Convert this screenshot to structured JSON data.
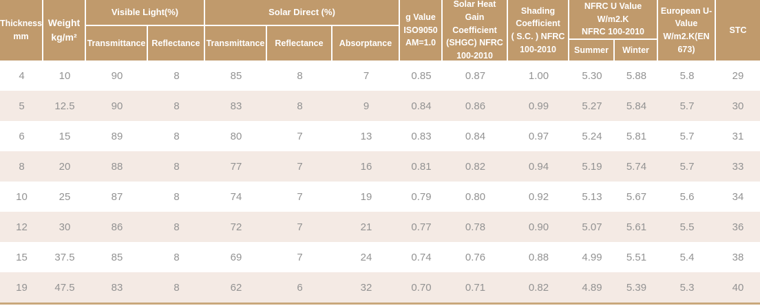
{
  "header": {
    "thickness": "Thickness\nmm",
    "weight": "Weight\nkg/m²",
    "visible_light": "Visible Light(%)",
    "visible_light_transmittance": "Transmittance",
    "visible_light_reflectance": "Reflectance",
    "solar_direct": "Solar  Direct (%)",
    "solar_direct_transmittance": "Transmittance",
    "solar_direct_reflectance": "Reflectance",
    "solar_direct_absorptance": "Absorptance",
    "g_value": "g Value\nISO9050\nAM=1.0",
    "shgc": "Solar Heat Gain\nCoefficient\n(SHGC) NFRC\n100-2010",
    "shading_coefficient": "Shading\nCoefficient\n( S.C. ) NFRC\n100-2010",
    "nfrc_u_value": "NFRC U Value\nW/m2.K\nNFRC 100-2010",
    "summer": "Summer",
    "winter": "Winter",
    "european_u_value": "European U-\nValue\nW/m2.K(EN\n673)",
    "stc": "STC"
  },
  "chart_data": {
    "type": "table",
    "columns": [
      "Thickness mm",
      "Weight kg/m²",
      "Visible Light Transmittance (%)",
      "Visible Light Reflectance (%)",
      "Solar Direct Transmittance (%)",
      "Solar Direct Reflectance (%)",
      "Solar Direct Absorptance (%)",
      "g Value ISO9050 AM=1.0",
      "Solar Heat Gain Coefficient (SHGC) NFRC 100-2010",
      "Shading Coefficient (S.C.) NFRC 100-2010",
      "NFRC U Value W/m2.K NFRC 100-2010 Summer",
      "NFRC U Value W/m2.K NFRC 100-2010 Winter",
      "European U-Value W/m2.K (EN 673)",
      "STC"
    ],
    "rows": [
      [
        "4",
        "10",
        "90",
        "8",
        "85",
        "8",
        "7",
        "0.85",
        "0.87",
        "1.00",
        "5.30",
        "5.88",
        "5.8",
        "29"
      ],
      [
        "5",
        "12.5",
        "90",
        "8",
        "83",
        "8",
        "9",
        "0.84",
        "0.86",
        "0.99",
        "5.27",
        "5.84",
        "5.7",
        "30"
      ],
      [
        "6",
        "15",
        "89",
        "8",
        "80",
        "7",
        "13",
        "0.83",
        "0.84",
        "0.97",
        "5.24",
        "5.81",
        "5.7",
        "31"
      ],
      [
        "8",
        "20",
        "88",
        "8",
        "77",
        "7",
        "16",
        "0.81",
        "0.82",
        "0.94",
        "5.19",
        "5.74",
        "5.7",
        "33"
      ],
      [
        "10",
        "25",
        "87",
        "8",
        "74",
        "7",
        "19",
        "0.79",
        "0.80",
        "0.92",
        "5.13",
        "5.67",
        "5.6",
        "34"
      ],
      [
        "12",
        "30",
        "86",
        "8",
        "72",
        "7",
        "21",
        "0.77",
        "0.78",
        "0.90",
        "5.07",
        "5.61",
        "5.5",
        "36"
      ],
      [
        "15",
        "37.5",
        "85",
        "8",
        "69",
        "7",
        "24",
        "0.74",
        "0.76",
        "0.88",
        "4.99",
        "5.51",
        "5.4",
        "38"
      ],
      [
        "19",
        "47.5",
        "83",
        "8",
        "62",
        "6",
        "32",
        "0.70",
        "0.71",
        "0.82",
        "4.89",
        "5.39",
        "5.3",
        "40"
      ]
    ]
  },
  "colors": {
    "header_bg": "#c09a6c",
    "header_text": "#ffffff",
    "row_bg": "#ffffff",
    "row_alt_bg": "#f4eae4",
    "data_text": "#929292",
    "bottom_border": "#c9a87c"
  }
}
